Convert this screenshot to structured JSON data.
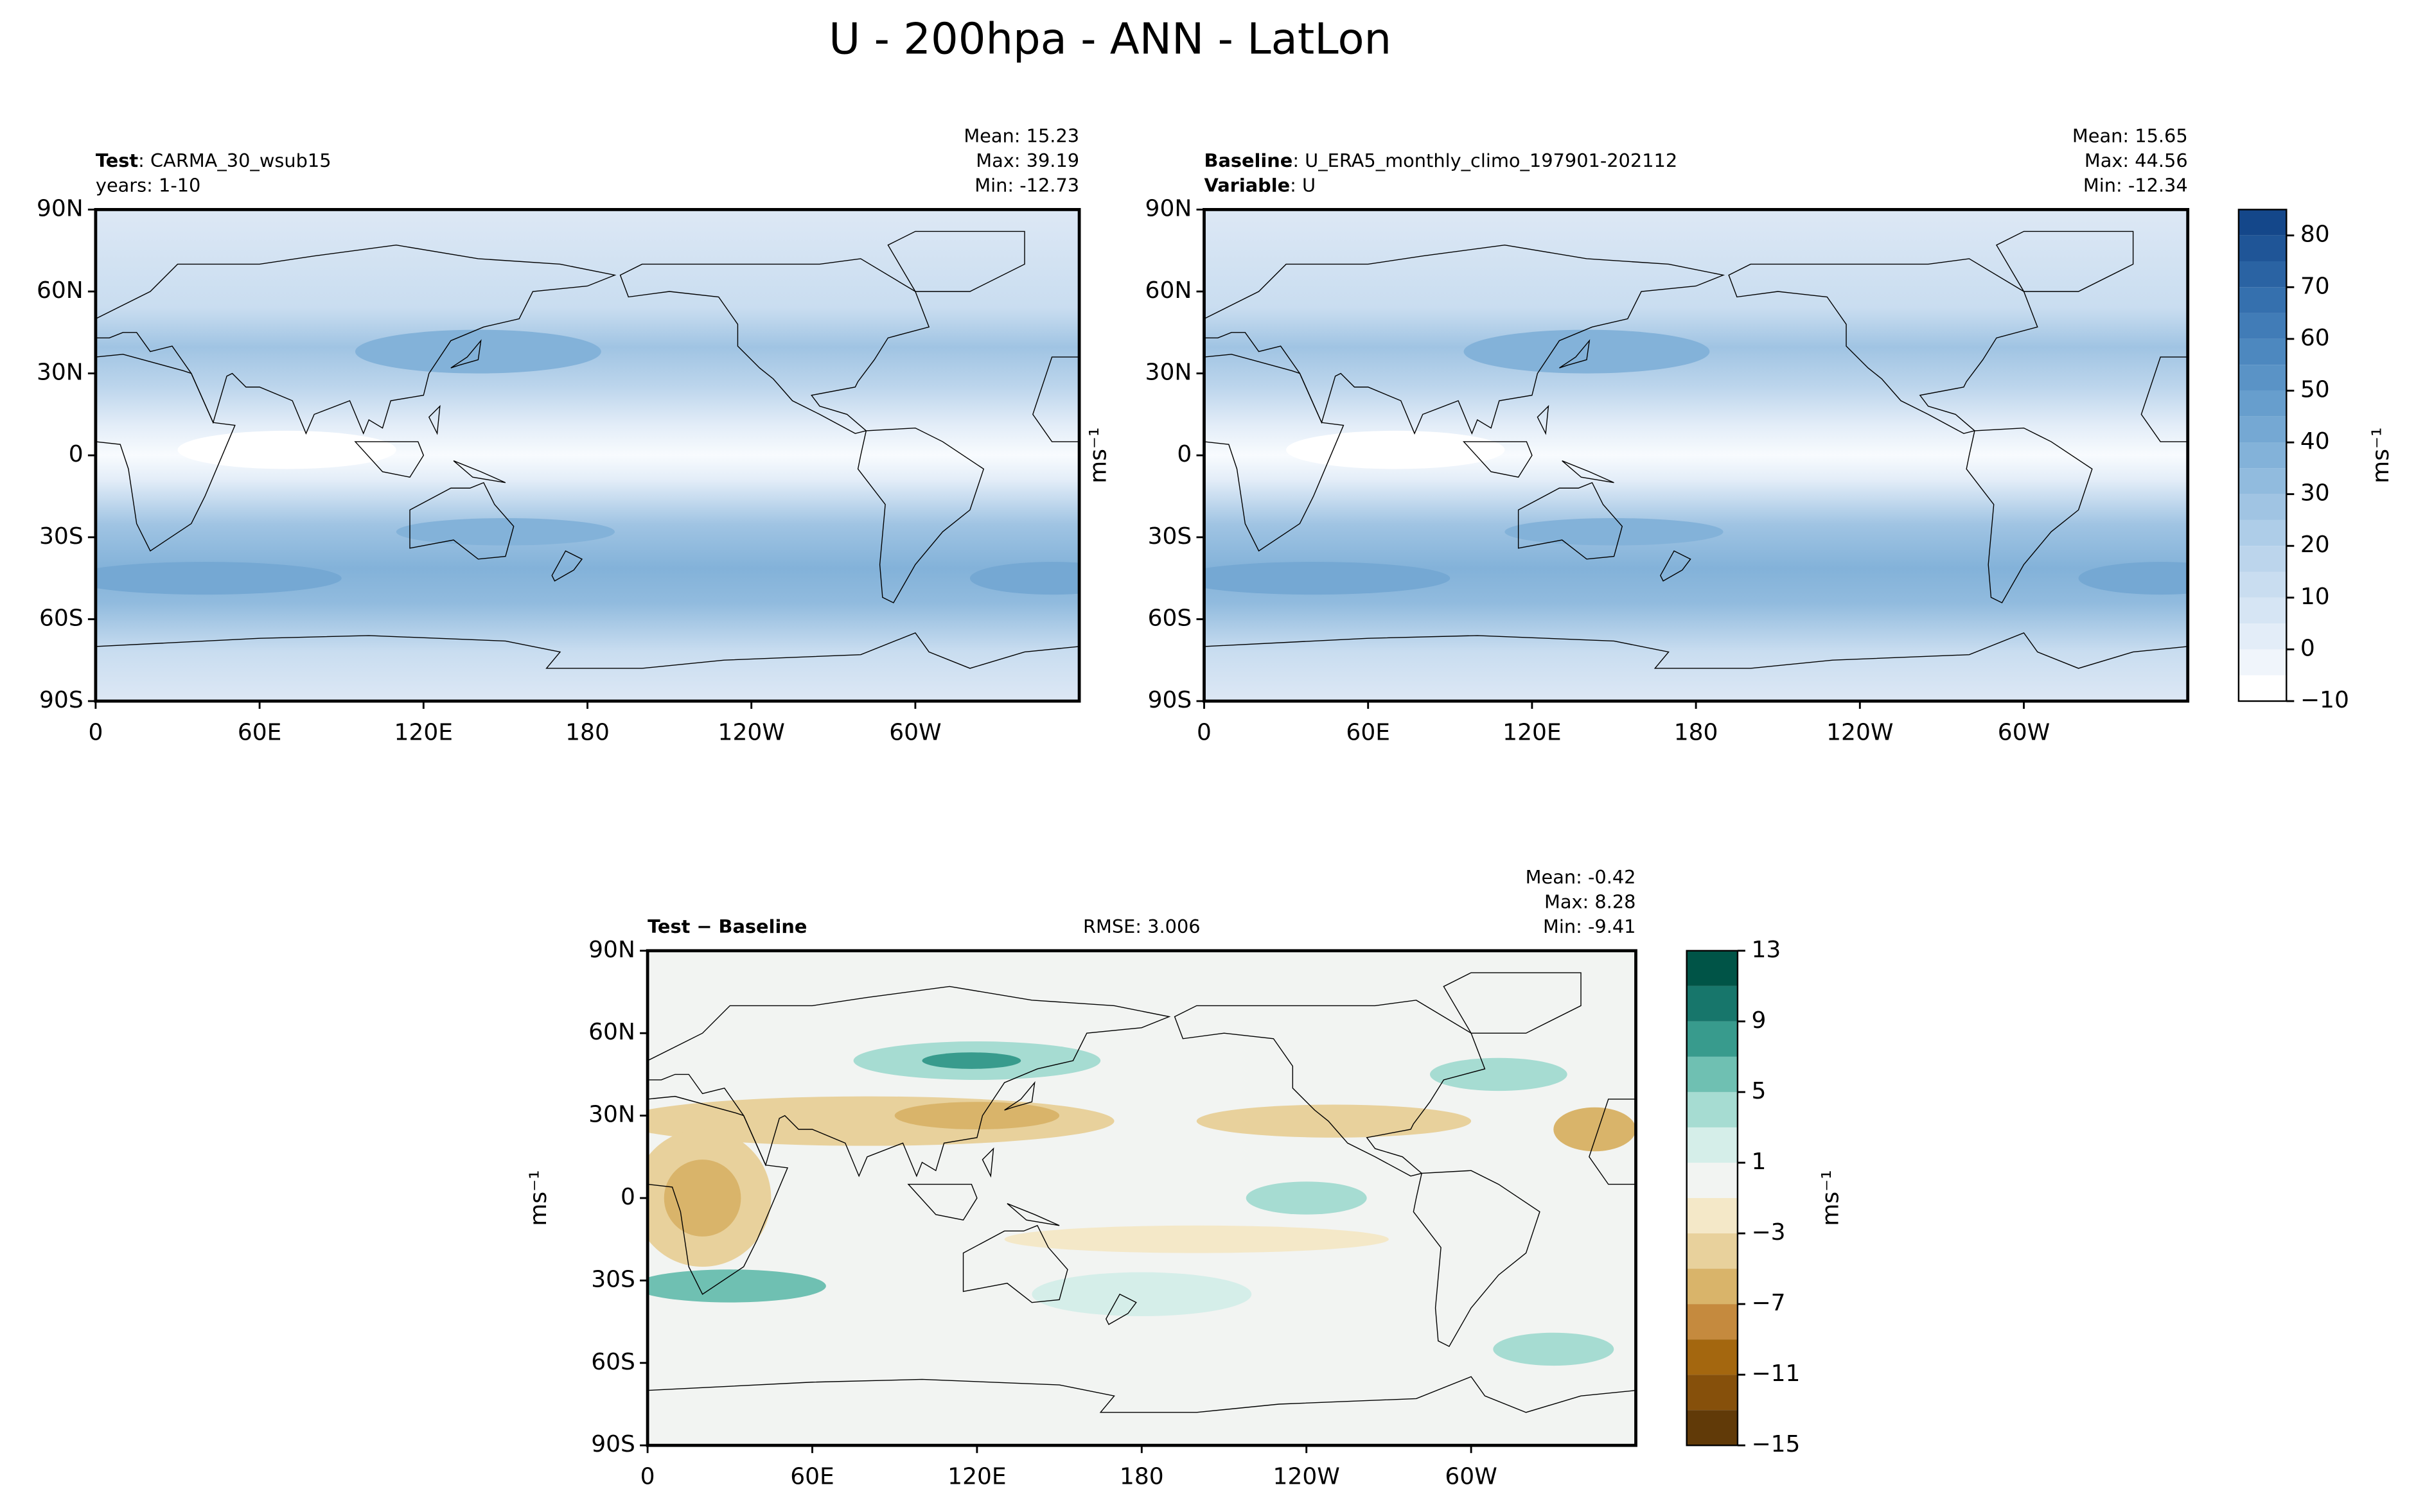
{
  "title": "U - 200hpa - ANN - LatLon",
  "axes": {
    "xlim": [
      0,
      360
    ],
    "ylim": [
      -90,
      90
    ],
    "xticks": [
      0,
      {
        "value": 60,
        "label": "60E"
      },
      {
        "value": 120,
        "label": "120E"
      },
      180,
      {
        "value": 240,
        "label": "120W"
      },
      {
        "value": 300,
        "label": "60W"
      }
    ],
    "yticks": [
      {
        "value": 90,
        "label": "90N"
      },
      {
        "value": 60,
        "label": "60N"
      },
      {
        "value": 30,
        "label": "30N"
      },
      0,
      {
        "value": -30,
        "label": "30S"
      },
      {
        "value": -60,
        "label": "60S"
      },
      {
        "value": -90,
        "label": "90S"
      }
    ]
  },
  "panels": [
    {
      "header": [
        {
          "key": "Test",
          "text": ": CARMA_30_wsub15"
        },
        {
          "text": "years: 1-10"
        }
      ],
      "stats": [
        "Mean: 15.23",
        "Max: 39.19",
        "Min: -12.73"
      ]
    },
    {
      "header": [
        {
          "key": "Baseline",
          "text": ": U_ERA5_monthly_climo_197901-202112"
        },
        {
          "key": "Variable",
          "text": ": U"
        }
      ],
      "stats": [
        "Mean: 15.65",
        "Max: 44.56",
        "Min: -12.34"
      ],
      "ylabel": "ms⁻¹"
    },
    {
      "header": [
        {
          "key": "Test − Baseline"
        }
      ],
      "center": "RMSE: 3.006",
      "stats": [
        "Mean: -0.42",
        "Max:  8.28",
        "Min: -9.41"
      ],
      "ylabel": "ms⁻¹"
    }
  ],
  "colorbars": [
    {
      "label": "ms⁻¹",
      "levels": [
        -10,
        -5,
        0,
        5,
        10,
        15,
        20,
        25,
        30,
        35,
        40,
        45,
        50,
        55,
        60,
        65,
        70,
        75,
        80,
        85
      ],
      "ticks": [
        {
          "value": -10,
          "label": "−10"
        },
        0,
        10,
        20,
        30,
        40,
        50,
        60,
        70,
        80
      ],
      "colors": [
        "#ffffff",
        "#f0f5fb",
        "#e3edf8",
        "#d6e5f4",
        "#c9ddf0",
        "#bcd5ec",
        "#aecde8",
        "#a0c4e3",
        "#91bbde",
        "#83b2d9",
        "#75a8d3",
        "#679ecd",
        "#5a93c6",
        "#4d88bf",
        "#417cb7",
        "#3570ae",
        "#2a63a3",
        "#1f5597",
        "#14478a"
      ]
    },
    {
      "label": "ms⁻¹",
      "levels": [
        -15,
        -13,
        -11,
        -9,
        -7,
        -5,
        -3,
        -1,
        1,
        3,
        5,
        7,
        9,
        11,
        13
      ],
      "ticks": [
        {
          "value": -15,
          "label": "−15"
        },
        {
          "value": -11,
          "label": "−11"
        },
        {
          "value": -7,
          "label": "−7"
        },
        {
          "value": -3,
          "label": "−3"
        },
        1,
        5,
        9,
        13
      ],
      "colors": [
        "#613a08",
        "#86500b",
        "#a4670f",
        "#c58a3e",
        "#d9b46a",
        "#e8d19c",
        "#f4e8c8",
        "#f2f4f2",
        "#d5eee9",
        "#a6dcd2",
        "#6fc0b2",
        "#389b8d",
        "#17766b",
        "#005447"
      ]
    }
  ]
}
